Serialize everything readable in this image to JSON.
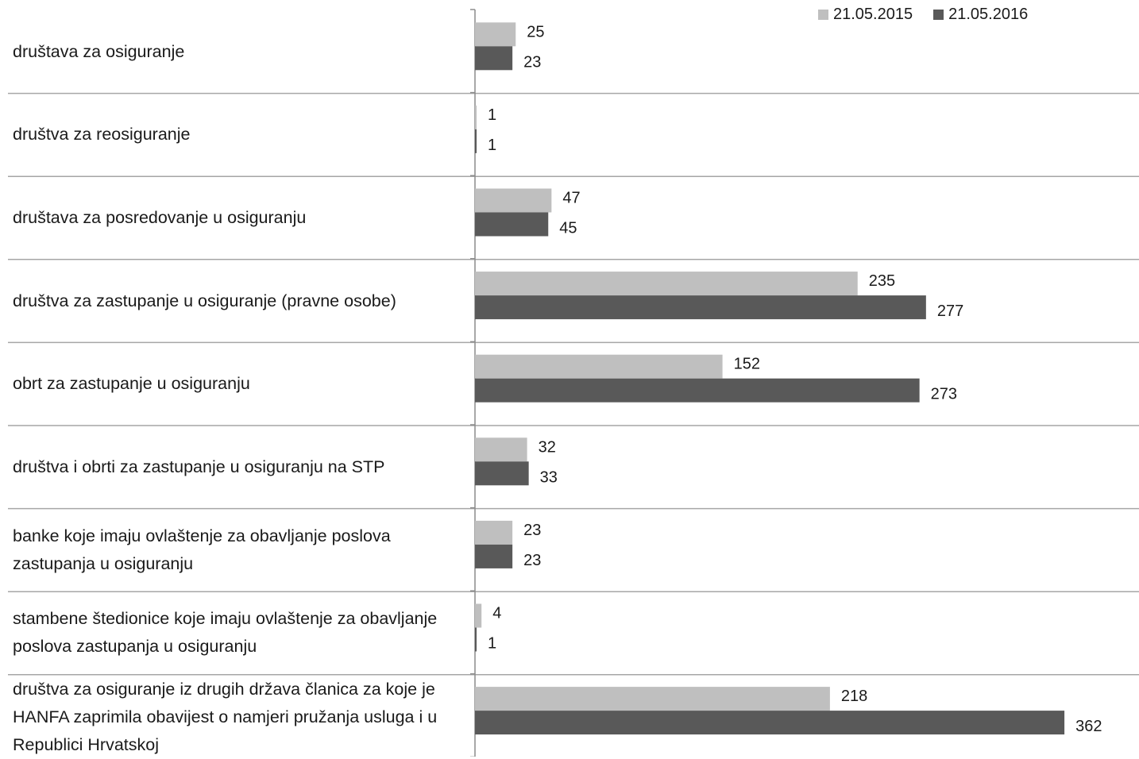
{
  "chart_data": {
    "type": "bar",
    "orientation": "horizontal",
    "categories": [
      "društava za osiguranje",
      "društva za reosiguranje",
      "društava za posredovanje u osiguranju",
      "društva za zastupanje u osiguranje (pravne osobe)",
      "obrt za zastupanje u osiguranju",
      "društva i obrti za zastupanje u osiguranju na STP",
      "banke koje imaju ovlaštenje za obavljanje poslova zastupanja u osiguranju",
      "stambene štedionice koje imaju ovlaštenje za obavljanje poslova zastupanja u osiguranju",
      "društva za osiguranje iz drugih država članica za koje je HANFA zaprimila obavijest o namjeri pružanja usluga i u Republici Hrvatskoj"
    ],
    "series": [
      {
        "name": "21.05.2015",
        "color": "#bfbfbf",
        "values": [
          25,
          1,
          47,
          235,
          152,
          32,
          23,
          4,
          218
        ]
      },
      {
        "name": "21.05.2016",
        "color": "#595959",
        "values": [
          23,
          1,
          45,
          277,
          273,
          33,
          23,
          1,
          362
        ]
      }
    ],
    "xlim": [
      0,
      400
    ],
    "legend_position": "top-right",
    "data_labels": true,
    "grid": "horizontal separators between categories"
  }
}
